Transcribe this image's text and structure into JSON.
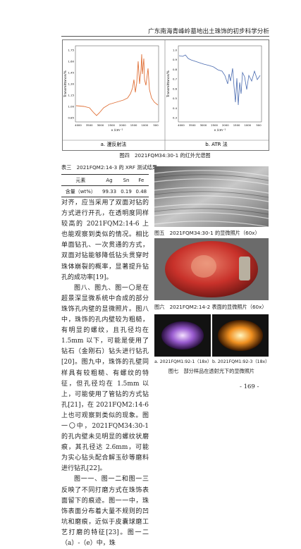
{
  "header": {
    "running_title": "广东南海青峰岭墓地出土珠饰的初步科学分析"
  },
  "figure4": {
    "panels": [
      {
        "y_label": "Transmittance/%",
        "x_label": "ν /cm⁻¹",
        "xticks": [
          "4000",
          "3500",
          "3000",
          "2500",
          "2000",
          "1500",
          "1000",
          "500"
        ],
        "yticks": [
          "1.75",
          "1.60",
          "1.45",
          "1.30",
          "1.15",
          "1.00",
          "0.85"
        ],
        "caption": "a. 漫反射法"
      },
      {
        "y_label": "Transmittance/%",
        "x_label": "ν /cm⁻¹",
        "xticks": [
          "4000",
          "3500",
          "3000",
          "2500",
          "2000",
          "1500",
          "1000",
          "500"
        ],
        "yticks": [
          "1.0",
          "0.9",
          "0.8",
          "0.7",
          "0.6",
          "0.5",
          "0.4",
          "0.3"
        ],
        "caption": "b. ATR 法"
      }
    ],
    "caption": "图四　2021FQM34:30-1 的红外光谱图"
  },
  "table3": {
    "caption": "表三　2021FQM2:14-3 的 XRF 测试结果",
    "header": [
      "元素",
      "Ag",
      "Sn",
      "Fe"
    ],
    "rows": [
      [
        "含量（wt%）",
        "99.33",
        "0.19",
        "0.48"
      ]
    ]
  },
  "body": {
    "paragraphs": [
      "对齐，应当采用了双面对钻的方式进行开孔，在透明度同样较高的 2021FQM2:14-6 上也能观察到类似的情况。相比单面钻孔、一次贯通的方式，双面对钻能够降低钻头贯穿时珠体崩裂的概率，显著提升钻孔的成功率[19]。",
      "图八、图九、图一〇是在超景深显微系统中合成的部分珠饰孔内壁的显微照片。图八中，珠饰的孔内壁较为粗糙，有明显的螺纹，且孔径均在 1.5mm 以下，可能是使用了钻石（金刚石）钻头进行钻孔[20]。图九中，珠饰的孔壁同样具有较粗糙、有螺纹的特征，但孔径均在 1.5mm 以上，可能使用了管钻的方式钻孔[21]，在 2021FQM2:14-6 上也可观察到类似的现象。图一〇中，2021FQM34:30-1 的孔内壁未见明显的螺纹状磨痕，其孔径达 2.6mm，可能为实心钻头配合解玉砂等磨料进行钻孔[22]。",
      "图一一、图一二和图一三反映了不同打磨方式在珠饰表面留下的痕迹。图一一中，珠饰表面分布着大量不规则的凹坑和磨痕，近似于皮囊球磨工艺打磨的特征[23]。图一二（a）-（e）中，珠"
    ]
  },
  "figure5": {
    "caption": "图五　2021FQM34:30-1 的显微照片（60x）"
  },
  "figure6": {
    "caption": "图六　2021FQM2:14-2 表面的显微照片（60x）"
  },
  "figure7": {
    "panels": [
      "a. 2021FQM1:92-1（18x）",
      "b. 2021FQM1:92-3（18x）"
    ],
    "caption": "图七　部分样品在透射光下的显微照片"
  },
  "page_number": "- 169 -"
}
